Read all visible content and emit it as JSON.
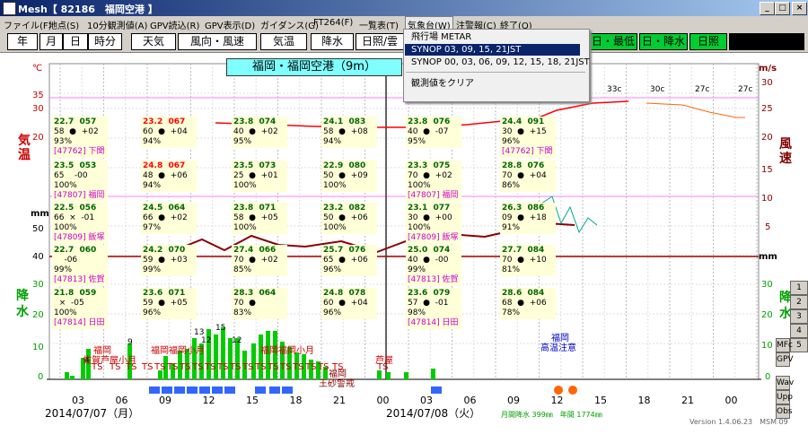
{
  "window": {
    "title": "Mesh【 82186　福岡空港 】",
    "min": "_",
    "max": "□",
    "close": "×"
  },
  "menu": [
    "ファイル(F)",
    "地点(S)",
    "10分観測値(A)",
    "GPV読込(R)",
    "GPV表示(D)",
    "ガイダンス(G)",
    "FT264(F)",
    "一覧表(T)",
    "気象台(W)",
    "注警報(C)",
    "終了(Q)"
  ],
  "toolbar": {
    "time_units": [
      "年",
      "月",
      "日",
      "時分"
    ],
    "elements": [
      "天気",
      "風向・風速",
      "気温",
      "降水",
      "日照/雲"
    ],
    "summary": [
      "日・最低",
      "日・降水",
      "日照"
    ]
  },
  "dropdown": {
    "items": [
      "飛行場 METAR",
      "SYNOP 03, 09, 15, 21JST",
      "SYNOP 00, 03, 06, 09, 12, 15, 18, 21JST",
      "観測値をクリア"
    ],
    "selected": 1
  },
  "station_title": "福岡・福岡空港（9m）",
  "axes": {
    "left_units": [
      "℃",
      "mm"
    ],
    "right_units": [
      "m/s",
      "mm"
    ],
    "temp_label": "気温",
    "precip_label": "降水",
    "wind_label": "風速",
    "left_temp_ticks": [
      "35",
      "30",
      "25",
      "20",
      "15"
    ],
    "left_precip_ticks": [
      "50",
      "40",
      "30",
      "20",
      "10",
      "0"
    ],
    "right_wind_ticks": [
      "30",
      "25",
      "20",
      "15",
      "10",
      "5"
    ],
    "right_precip_ticks": [
      "30",
      "20",
      "10",
      "0"
    ],
    "hour_ticks": [
      "03",
      "06",
      "09",
      "12",
      "15",
      "18",
      "21",
      "00",
      "03",
      "06",
      "09",
      "12",
      "15",
      "18",
      "21",
      "00"
    ],
    "dates": [
      "2014/07/07（月）",
      "2014/07/08（火）"
    ]
  },
  "stations": [
    {
      "col": 0,
      "row": 0,
      "lines": [
        "22.7  057",
        "58  ●  +02",
        "93%   ",
        "[47762] 下関"
      ]
    },
    {
      "col": 0,
      "row": 1,
      "lines": [
        "23.5  053",
        "65    -00",
        "100%   ",
        "[47807] 福岡"
      ]
    },
    {
      "col": 0,
      "row": 2,
      "lines": [
        "22.5  056",
        "66  ×  -01",
        "100%   ",
        "[47809] 飯塚"
      ]
    },
    {
      "col": 0,
      "row": 3,
      "lines": [
        "22.7  060",
        "    -06",
        "99%   ",
        "[47813] 佐賀"
      ]
    },
    {
      "col": 0,
      "row": 4,
      "lines": [
        "21.8  059",
        "  ×  -05",
        "100%   ",
        "[47814] 日田"
      ]
    },
    {
      "col": 1,
      "row": 0,
      "lines": [
        "23.2  067",
        "60  ●  +04",
        "94%   ",
        ""
      ]
    },
    {
      "col": 1,
      "row": 1,
      "lines": [
        "24.8  067",
        "48  ●  +06",
        "94%   ",
        ""
      ]
    },
    {
      "col": 1,
      "row": 2,
      "lines": [
        "24.5  064",
        "66  ●  +02",
        "97%   ",
        ""
      ]
    },
    {
      "col": 1,
      "row": 3,
      "lines": [
        "24.2  070",
        "59  ●  +03",
        "99%   ",
        ""
      ]
    },
    {
      "col": 1,
      "row": 4,
      "lines": [
        "23.6  071",
        "59  ●  +05",
        "96%   ",
        ""
      ]
    },
    {
      "col": 2,
      "row": 0,
      "lines": [
        "23.8  074",
        "40  ●  +02",
        "95%   ",
        ""
      ]
    },
    {
      "col": 2,
      "row": 1,
      "lines": [
        "23.5  073",
        "25  ●  +01",
        "100%   ",
        ""
      ]
    },
    {
      "col": 2,
      "row": 2,
      "lines": [
        "23.8  071",
        "58  ●  +05",
        "100%   ",
        ""
      ]
    },
    {
      "col": 2,
      "row": 3,
      "lines": [
        "27.4  066",
        "70  ●  +02",
        "85%   ",
        ""
      ]
    },
    {
      "col": 2,
      "row": 4,
      "lines": [
        "28.3  064",
        "70  ●  ",
        "83%   ",
        ""
      ]
    },
    {
      "col": 3,
      "row": 0,
      "lines": [
        "24.1  083",
        "58  ●  +08",
        "94%   ",
        ""
      ]
    },
    {
      "col": 3,
      "row": 1,
      "lines": [
        "22.9  080",
        "50  ●  +09",
        "100%   ",
        ""
      ]
    },
    {
      "col": 3,
      "row": 2,
      "lines": [
        "23.2  082",
        "50  ●  +06",
        "100%   ",
        ""
      ]
    },
    {
      "col": 3,
      "row": 3,
      "lines": [
        "25.7  076",
        "65  ●  +06",
        "96%   ",
        ""
      ]
    },
    {
      "col": 3,
      "row": 4,
      "lines": [
        "24.8  078",
        "60  ●  +04",
        "96%   ",
        ""
      ]
    },
    {
      "col": 4,
      "row": 0,
      "lines": [
        "23.8  076",
        "40  ●  -07",
        "95%   ",
        ""
      ]
    },
    {
      "col": 4,
      "row": 1,
      "lines": [
        "23.3  075",
        "70  ●  +02",
        "100%   ",
        "[47807] 福岡"
      ]
    },
    {
      "col": 4,
      "row": 2,
      "lines": [
        "23.1  077",
        "30  ●  +00",
        "100%   ",
        "[47809] 飯塚"
      ]
    },
    {
      "col": 4,
      "row": 3,
      "lines": [
        "25.0  074",
        "40  ●  -00",
        "99%   ",
        "[47813] 佐賀"
      ]
    },
    {
      "col": 4,
      "row": 4,
      "lines": [
        "23.6  079",
        "57  ●  -01",
        "98%   ",
        "[47814] 日田"
      ]
    },
    {
      "col": 5,
      "row": 0,
      "lines": [
        "24.4  091",
        "30  ●  +15",
        "96%   ",
        "[47762] 下関"
      ]
    },
    {
      "col": 5,
      "row": 1,
      "lines": [
        "28.8  076",
        "70  ●  +04",
        "86%   ",
        ""
      ]
    },
    {
      "col": 5,
      "row": 2,
      "lines": [
        "26.3  086",
        "09  ●  +18",
        "91%   ",
        ""
      ]
    },
    {
      "col": 5,
      "row": 3,
      "lines": [
        "27.7  084",
        "70  ●  +10",
        "81%   ",
        ""
      ]
    },
    {
      "col": 5,
      "row": 4,
      "lines": [
        "28.6  084",
        "68  ●  +06",
        "78%   ",
        ""
      ]
    }
  ],
  "warnings": {
    "places_top": [
      "福岡",
      "佐賀芦屋小月",
      "福岡福岡小月",
      "福岡福岡小月",
      "芦屋"
    ],
    "ts_codes": [
      "TS",
      "TS",
      "TS",
      "TS",
      "TS",
      "TS",
      "TS",
      "TS",
      "TS",
      "TS",
      "TS",
      "TS",
      "TS",
      "TS",
      "TS",
      "TS",
      "TS",
      "TS",
      "TS",
      "TS",
      "TS",
      "TS",
      "TS"
    ],
    "other": [
      "福岡",
      "王砂警戒",
      "福岡",
      "高温注意"
    ]
  },
  "forecast_temps": [
    "33c",
    "33c",
    "30c",
    "27c",
    "27c"
  ],
  "precip_bar_labels": [
    "4",
    "9",
    "13",
    "12",
    "15",
    "12"
  ],
  "monthly_note": "月間降水 399㎜　年間 1774㎜",
  "version": "Version 1.4.06.23　MSM 09",
  "side_buttons": [
    "1",
    "2",
    "3",
    "4",
    "5",
    "MFc",
    "GPV",
    "Wav",
    "Upp",
    "Obs"
  ],
  "colors": {
    "temp": "#ff0000",
    "wind": "#8b0000",
    "precip": "#00aa00",
    "accent": "#00cc33",
    "title_bg": "#7fffff"
  }
}
